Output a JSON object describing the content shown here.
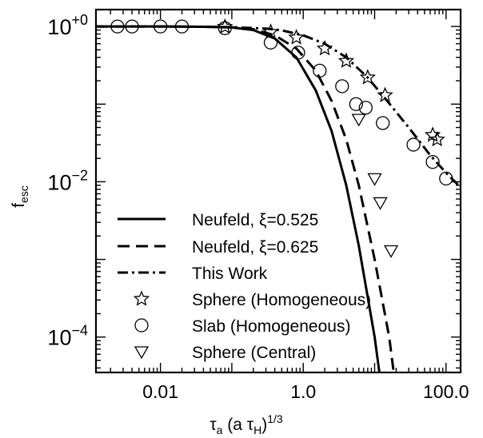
{
  "chart_data": {
    "type": "line",
    "xscale": "log",
    "yscale": "log",
    "xlim": [
      0.00125,
      160
    ],
    "ylim": [
      3.5e-05,
      1.65
    ],
    "xlabel": {
      "base": "τ",
      "base_sub": "a",
      "mid": " (a τ",
      "mid_sub": "H",
      "close": ")",
      "exp": "1/3"
    },
    "ylabel": {
      "base": "f",
      "sub": "esc"
    },
    "x_ticks": [
      {
        "value": 0.01,
        "label": "0.01"
      },
      {
        "value": 1.0,
        "label": "1.0"
      },
      {
        "value": 100.0,
        "label": "100.0"
      }
    ],
    "y_ticks": [
      {
        "value": 1,
        "base": "10",
        "exp": "+0"
      },
      {
        "value": 0.01,
        "base": "10",
        "exp": "−2"
      },
      {
        "value": 0.0001,
        "base": "10",
        "exp": "−4"
      }
    ],
    "grid": false,
    "legend_position": "bottom-left",
    "series": [
      {
        "name": "Neufeld, ξ=0.525",
        "style": "solid",
        "marker": "none",
        "points": [
          [
            0.00125,
            1.0
          ],
          [
            0.01,
            1.0
          ],
          [
            0.05,
            0.99
          ],
          [
            0.1,
            0.97
          ],
          [
            0.2,
            0.9
          ],
          [
            0.4,
            0.7
          ],
          [
            0.8,
            0.4
          ],
          [
            1.5,
            0.15
          ],
          [
            2.5,
            0.045
          ],
          [
            4.0,
            0.009
          ],
          [
            6.0,
            0.0015
          ],
          [
            10.0,
            0.0001
          ],
          [
            14.0,
            1e-05
          ]
        ]
      },
      {
        "name": "Neufeld, ξ=0.625",
        "style": "dashed",
        "marker": "none",
        "points": [
          [
            0.00125,
            1.0
          ],
          [
            0.01,
            1.0
          ],
          [
            0.05,
            0.99
          ],
          [
            0.1,
            0.98
          ],
          [
            0.2,
            0.92
          ],
          [
            0.4,
            0.77
          ],
          [
            0.8,
            0.52
          ],
          [
            1.5,
            0.27
          ],
          [
            2.5,
            0.11
          ],
          [
            4.0,
            0.035
          ],
          [
            6.0,
            0.009
          ],
          [
            10.0,
            0.001
          ],
          [
            16.0,
            0.0001
          ],
          [
            22.0,
            1e-05
          ]
        ]
      },
      {
        "name": "This Work",
        "style": "dashdot",
        "marker": "none",
        "points": [
          [
            0.00125,
            1.0
          ],
          [
            0.01,
            1.0
          ],
          [
            0.05,
            0.99
          ],
          [
            0.1,
            0.98
          ],
          [
            0.3,
            0.94
          ],
          [
            0.5,
            0.89
          ],
          [
            1.0,
            0.77
          ],
          [
            2.0,
            0.6
          ],
          [
            4.0,
            0.4
          ],
          [
            8.0,
            0.22
          ],
          [
            15.0,
            0.11
          ],
          [
            30.0,
            0.05
          ],
          [
            60.0,
            0.022
          ],
          [
            100.0,
            0.013
          ],
          [
            160.0,
            0.0085
          ]
        ]
      },
      {
        "name": "Sphere (Homogeneous)",
        "style": "none",
        "marker": "star",
        "points": [
          [
            0.08,
            0.99
          ],
          [
            0.35,
            0.85
          ],
          [
            0.8,
            0.72
          ],
          [
            2.0,
            0.52
          ],
          [
            4.0,
            0.36
          ],
          [
            8.0,
            0.22
          ],
          [
            14.0,
            0.13
          ],
          [
            65.0,
            0.04
          ],
          [
            75.0,
            0.035
          ]
        ]
      },
      {
        "name": "Slab (Homogeneous)",
        "style": "none",
        "marker": "circle",
        "points": [
          [
            0.0025,
            1.0
          ],
          [
            0.004,
            1.0
          ],
          [
            0.01,
            1.0
          ],
          [
            0.02,
            1.0
          ],
          [
            0.08,
            0.95
          ],
          [
            0.35,
            0.62
          ],
          [
            0.85,
            0.46
          ],
          [
            1.7,
            0.27
          ],
          [
            3.5,
            0.17
          ],
          [
            5.5,
            0.1
          ],
          [
            7.5,
            0.09
          ],
          [
            13.0,
            0.057
          ],
          [
            35.0,
            0.03
          ],
          [
            65.0,
            0.018
          ],
          [
            100.0,
            0.011
          ]
        ]
      },
      {
        "name": "Sphere (Central)",
        "style": "none",
        "marker": "triangle-down",
        "points": [
          [
            6.0,
            0.064
          ],
          [
            10.0,
            0.011
          ],
          [
            12.0,
            0.0054
          ],
          [
            17.0,
            0.0013
          ]
        ]
      }
    ]
  }
}
